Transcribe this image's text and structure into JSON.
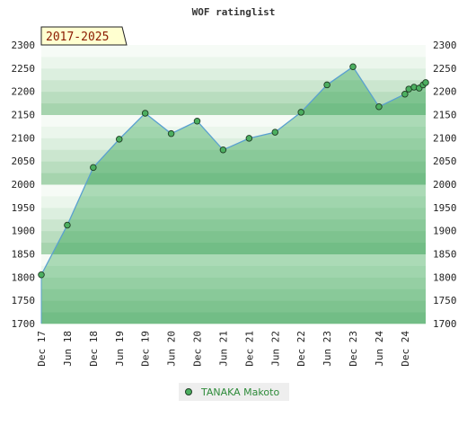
{
  "chart_data": {
    "type": "area",
    "title": "WOF ratinglist",
    "badge": "2017-2025",
    "xlabel": "",
    "ylabel": "",
    "ylim": [
      1700,
      2300
    ],
    "y_ticks": [
      1700,
      1750,
      1800,
      1850,
      1900,
      1950,
      2000,
      2050,
      2100,
      2150,
      2200,
      2250,
      2300
    ],
    "x_ticks": [
      {
        "label": "Dec 17",
        "t": 0
      },
      {
        "label": "Jun 18",
        "t": 1
      },
      {
        "label": "Dec 18",
        "t": 2
      },
      {
        "label": "Jun 19",
        "t": 3
      },
      {
        "label": "Dec 19",
        "t": 4
      },
      {
        "label": "Jun 20",
        "t": 5
      },
      {
        "label": "Dec 20",
        "t": 6
      },
      {
        "label": "Jun 21",
        "t": 7
      },
      {
        "label": "Dec 21",
        "t": 8
      },
      {
        "label": "Jun 22",
        "t": 9
      },
      {
        "label": "Dec 22",
        "t": 10
      },
      {
        "label": "Jun 23",
        "t": 11
      },
      {
        "label": "Dec 23",
        "t": 12
      },
      {
        "label": "Jun 24",
        "t": 13
      },
      {
        "label": "Dec 24",
        "t": 14
      }
    ],
    "x_max": 14.8,
    "grid": "banded",
    "legend_position": "bottom-center",
    "series": [
      {
        "name": "TANAKA Makoto",
        "color": "#2e8b3a",
        "line_color": "#5aa0d0",
        "marker_color": "#4caf60",
        "points": [
          {
            "t": 0.0,
            "y": 1805
          },
          {
            "t": 1.0,
            "y": 1912
          },
          {
            "t": 2.0,
            "y": 2036
          },
          {
            "t": 3.0,
            "y": 2097
          },
          {
            "t": 4.0,
            "y": 2153
          },
          {
            "t": 5.0,
            "y": 2109
          },
          {
            "t": 6.0,
            "y": 2136
          },
          {
            "t": 7.0,
            "y": 2074
          },
          {
            "t": 8.0,
            "y": 2099
          },
          {
            "t": 9.0,
            "y": 2112
          },
          {
            "t": 10.0,
            "y": 2155
          },
          {
            "t": 11.0,
            "y": 2214
          },
          {
            "t": 12.0,
            "y": 2253
          },
          {
            "t": 13.0,
            "y": 2167
          },
          {
            "t": 14.0,
            "y": 2194
          },
          {
            "t": 14.15,
            "y": 2205
          },
          {
            "t": 14.35,
            "y": 2209
          },
          {
            "t": 14.55,
            "y": 2207
          },
          {
            "t": 14.7,
            "y": 2214
          },
          {
            "t": 14.8,
            "y": 2219
          }
        ]
      }
    ]
  }
}
